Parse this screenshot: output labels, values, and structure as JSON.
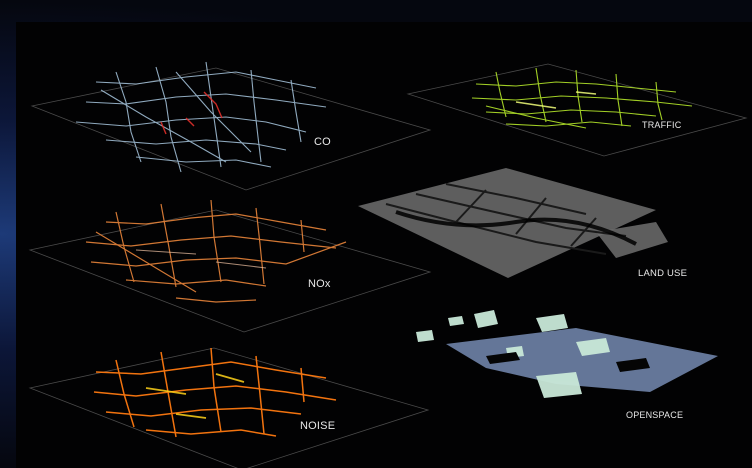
{
  "layers": {
    "co": {
      "label": "CO",
      "color": "#a9c8e0",
      "accent": "#e2302c"
    },
    "traffic": {
      "label": "TRAFFIC",
      "color": "#b4e62a"
    },
    "nox": {
      "label": "NOx",
      "color": "#e8843a"
    },
    "land_use": {
      "label": "LAND USE",
      "color": "#8a8a8a"
    },
    "noise": {
      "label": "NOISE",
      "color": "#ff7a10",
      "accent": "#ffd21a"
    },
    "openspace": {
      "label": "OPENSPACE",
      "color": "#c9e8d8",
      "accent": "#8fa8d8"
    }
  }
}
